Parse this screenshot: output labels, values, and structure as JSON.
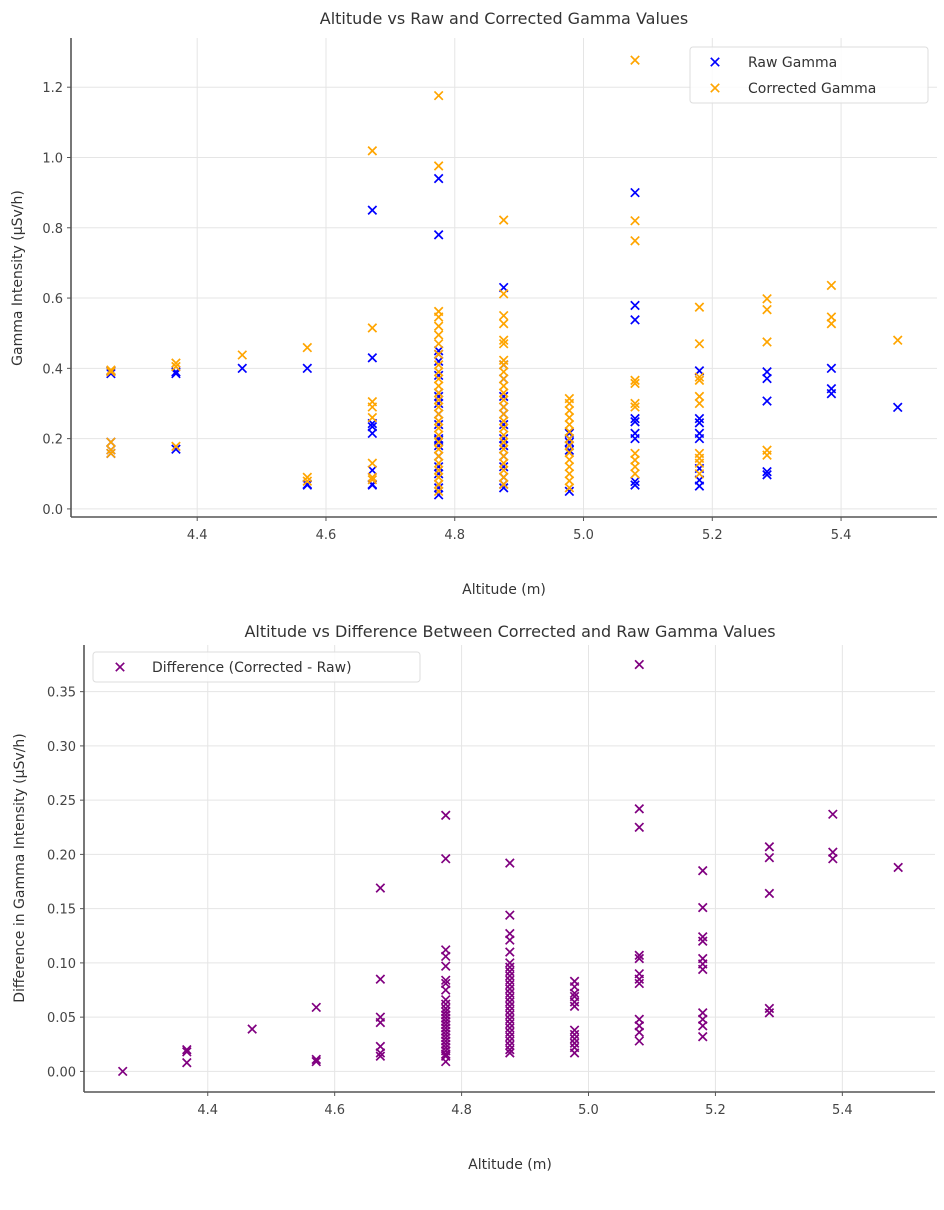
{
  "chart_data": [
    {
      "type": "scatter",
      "title": "Altitude vs Raw and Corrected Gamma Values",
      "xlabel": "Altitude (m)",
      "ylabel": "Gamma Intensity (μSv/h)",
      "xlim": [
        4.204,
        5.549
      ],
      "ylim": [
        -0.023,
        1.34
      ],
      "xticks": [
        4.4,
        4.6,
        4.8,
        5.0,
        5.2,
        5.4
      ],
      "xtick_labels": [
        "4.4",
        "4.6",
        "4.8",
        "5.0",
        "5.2",
        "5.4"
      ],
      "yticks": [
        0.0,
        0.2,
        0.4,
        0.6,
        0.8,
        1.0,
        1.2
      ],
      "ytick_labels": [
        "0.0",
        "0.2",
        "0.4",
        "0.6",
        "0.8",
        "1.0",
        "1.2"
      ],
      "grid": true,
      "legend_position": "top-right",
      "series": [
        {
          "name": "Raw Gamma",
          "color": "#0000ff",
          "marker": "x",
          "clusters": [
            {
              "x": 4.266,
              "y": [
                0.393,
                0.385,
                0.19,
                0.168,
                0.158
              ]
            },
            {
              "x": 4.367,
              "y": [
                0.39,
                0.385,
                0.17
              ]
            },
            {
              "x": 4.47,
              "y": [
                0.4
              ]
            },
            {
              "x": 4.571,
              "y": [
                0.4,
                0.07,
                0.068
              ]
            },
            {
              "x": 4.672,
              "y": [
                0.85,
                0.43,
                0.243,
                0.234,
                0.215,
                0.11,
                0.07,
                0.068
              ]
            },
            {
              "x": 4.775,
              "y": [
                0.94,
                0.78,
                0.45,
                0.44,
                0.42,
                0.38,
                0.33,
                0.32,
                0.3,
                0.27,
                0.24,
                0.2,
                0.195,
                0.18,
                0.15,
                0.12,
                0.1,
                0.07,
                0.06,
                0.04
              ]
            },
            {
              "x": 4.876,
              "y": [
                0.63,
                0.41,
                0.37,
                0.32,
                0.29,
                0.27,
                0.24,
                0.2,
                0.18,
                0.15,
                0.12,
                0.09,
                0.07,
                0.06
              ]
            },
            {
              "x": 4.978,
              "y": [
                0.215,
                0.2,
                0.19,
                0.18,
                0.167,
                0.05
              ]
            },
            {
              "x": 5.08,
              "y": [
                0.9,
                0.579,
                0.538,
                0.257,
                0.248,
                0.215,
                0.2,
                0.078,
                0.068
              ]
            },
            {
              "x": 5.18,
              "y": [
                0.393,
                0.257,
                0.245,
                0.215,
                0.2,
                0.115,
                0.082,
                0.065
              ]
            },
            {
              "x": 5.285,
              "y": [
                0.39,
                0.371,
                0.307,
                0.106,
                0.097
              ]
            },
            {
              "x": 5.385,
              "y": [
                0.4,
                0.342,
                0.328
              ]
            },
            {
              "x": 5.488,
              "y": [
                0.289
              ]
            }
          ]
        },
        {
          "name": "Corrected Gamma",
          "color": "#ffa500",
          "marker": "x",
          "clusters": [
            {
              "x": 4.266,
              "y": [
                0.395,
                0.39,
                0.19,
                0.168,
                0.158
              ]
            },
            {
              "x": 4.367,
              "y": [
                0.415,
                0.405,
                0.178
              ]
            },
            {
              "x": 4.47,
              "y": [
                0.438
              ]
            },
            {
              "x": 4.571,
              "y": [
                0.459,
                0.09,
                0.079
              ]
            },
            {
              "x": 4.672,
              "y": [
                1.019,
                0.515,
                0.305,
                0.29,
                0.26,
                0.13,
                0.09,
                0.083
              ]
            },
            {
              "x": 4.775,
              "y": [
                1.176,
                0.976,
                0.562,
                0.546,
                0.52,
                0.495,
                0.47,
                0.44,
                0.41,
                0.39,
                0.37,
                0.35,
                0.33,
                0.31,
                0.29,
                0.27,
                0.25,
                0.23,
                0.21,
                0.19,
                0.17,
                0.15,
                0.13,
                0.11,
                0.09,
                0.07,
                0.05
              ]
            },
            {
              "x": 4.876,
              "y": [
                0.822,
                0.612,
                0.55,
                0.527,
                0.48,
                0.47,
                0.423,
                0.41,
                0.39,
                0.37,
                0.35,
                0.33,
                0.31,
                0.29,
                0.27,
                0.25,
                0.23,
                0.21,
                0.19,
                0.17,
                0.15,
                0.13,
                0.11,
                0.09,
                0.07
              ]
            },
            {
              "x": 4.978,
              "y": [
                0.314,
                0.3,
                0.28,
                0.26,
                0.24,
                0.22,
                0.2,
                0.18,
                0.16,
                0.14,
                0.12,
                0.1,
                0.08,
                0.06
              ]
            },
            {
              "x": 5.08,
              "y": [
                1.277,
                0.82,
                0.763,
                0.366,
                0.357,
                0.3,
                0.29,
                0.158,
                0.139,
                0.12,
                0.1
              ]
            },
            {
              "x": 5.18,
              "y": [
                0.574,
                0.47,
                0.375,
                0.366,
                0.32,
                0.3,
                0.158,
                0.144,
                0.13,
                0.1
              ]
            },
            {
              "x": 5.285,
              "y": [
                0.598,
                0.567,
                0.475,
                0.167,
                0.153
              ]
            },
            {
              "x": 5.385,
              "y": [
                0.636,
                0.546,
                0.527
              ]
            },
            {
              "x": 5.488,
              "y": [
                0.48
              ]
            }
          ]
        }
      ]
    },
    {
      "type": "scatter",
      "title": "Altitude vs Difference Between Corrected and Raw Gamma Values",
      "xlabel": "Altitude (m)",
      "ylabel": "Difference in Gamma Intensity (μSv/h)",
      "xlim": [
        4.205,
        5.546
      ],
      "ylim": [
        -0.019,
        0.393
      ],
      "xticks": [
        4.4,
        4.6,
        4.8,
        5.0,
        5.2,
        5.4
      ],
      "xtick_labels": [
        "4.4",
        "4.6",
        "4.8",
        "5.0",
        "5.2",
        "5.4"
      ],
      "yticks": [
        0.0,
        0.05,
        0.1,
        0.15,
        0.2,
        0.25,
        0.3,
        0.35
      ],
      "ytick_labels": [
        "0.00",
        "0.05",
        "0.10",
        "0.15",
        "0.20",
        "0.25",
        "0.30",
        "0.35"
      ],
      "grid": true,
      "legend_position": "top-left",
      "series": [
        {
          "name": "Difference (Corrected - Raw)",
          "color": "#800080",
          "marker": "x",
          "clusters": [
            {
              "x": 4.266,
              "y": [
                0.0
              ]
            },
            {
              "x": 4.367,
              "y": [
                0.018,
                0.02,
                0.008
              ]
            },
            {
              "x": 4.47,
              "y": [
                0.039
              ]
            },
            {
              "x": 4.571,
              "y": [
                0.059,
                0.011,
                0.009
              ]
            },
            {
              "x": 4.672,
              "y": [
                0.169,
                0.085,
                0.05,
                0.045,
                0.023,
                0.017,
                0.014
              ]
            },
            {
              "x": 4.775,
              "y": [
                0.236,
                0.196,
                0.112,
                0.106,
                0.097,
                0.084,
                0.081,
                0.075,
                0.066,
                0.062,
                0.058,
                0.055,
                0.052,
                0.049,
                0.046,
                0.043,
                0.04,
                0.037,
                0.034,
                0.031,
                0.028,
                0.025,
                0.022,
                0.019,
                0.016,
                0.014,
                0.009
              ]
            },
            {
              "x": 4.876,
              "y": [
                0.192,
                0.144,
                0.127,
                0.121,
                0.11,
                0.1,
                0.096,
                0.092,
                0.088,
                0.084,
                0.08,
                0.076,
                0.072,
                0.068,
                0.064,
                0.06,
                0.056,
                0.052,
                0.048,
                0.044,
                0.04,
                0.036,
                0.032,
                0.028,
                0.024,
                0.02,
                0.017
              ]
            },
            {
              "x": 4.978,
              "y": [
                0.083,
                0.078,
                0.072,
                0.069,
                0.064,
                0.06,
                0.038,
                0.034,
                0.03,
                0.026,
                0.022,
                0.017
              ]
            },
            {
              "x": 5.08,
              "y": [
                0.375,
                0.242,
                0.225,
                0.107,
                0.104,
                0.09,
                0.085,
                0.081,
                0.048,
                0.042,
                0.036,
                0.028
              ]
            },
            {
              "x": 5.18,
              "y": [
                0.185,
                0.151,
                0.124,
                0.12,
                0.104,
                0.099,
                0.094,
                0.054,
                0.048,
                0.042,
                0.032
              ]
            },
            {
              "x": 5.285,
              "y": [
                0.207,
                0.197,
                0.164,
                0.058,
                0.054
              ]
            },
            {
              "x": 5.385,
              "y": [
                0.237,
                0.202,
                0.196
              ]
            },
            {
              "x": 5.488,
              "y": [
                0.188
              ]
            }
          ]
        }
      ]
    }
  ]
}
